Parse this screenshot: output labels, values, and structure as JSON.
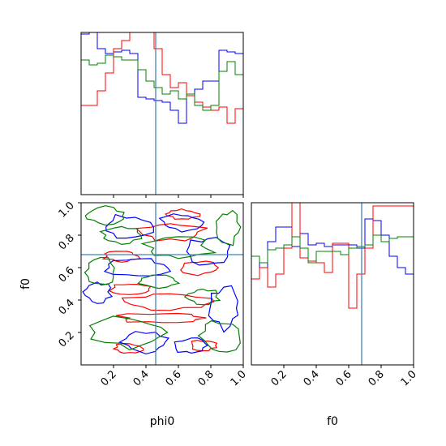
{
  "chart_data": {
    "type": "corner",
    "parameters": [
      "phi0",
      "f0"
    ],
    "xlabel_phi0": "phi0",
    "xlabel_f0": "f0",
    "ylabel_f0": "f0",
    "truths": {
      "phi0": 0.46,
      "f0": 0.68
    },
    "truth_color": "#4682b4",
    "tick_labels": [
      "0.2",
      "0.4",
      "0.6",
      "0.8",
      "1.0"
    ],
    "tick_values": [
      0.2,
      0.4,
      0.6,
      0.8,
      1.0
    ],
    "ylim_f0": [
      0,
      1
    ],
    "xlim": [
      0,
      1
    ],
    "series_colors": [
      "#0000ff",
      "#ff0000",
      "#008000"
    ],
    "series": [
      {
        "color": "#0000ff",
        "hist_phi0": [
          0.99,
          1.0,
          0.9,
          0.87,
          0.88,
          0.89,
          0.87,
          0.6,
          0.59,
          0.58,
          0.57,
          0.52,
          0.44,
          0.62,
          0.65,
          0.7,
          0.7,
          0.89,
          0.88,
          0.87
        ],
        "hist_f0": [
          0.67,
          0.6,
          0.76,
          0.85,
          0.85,
          0.73,
          0.81,
          0.74,
          0.75,
          0.73,
          0.74,
          0.74,
          0.74,
          0.72,
          0.9,
          0.89,
          0.8,
          0.67,
          0.6,
          0.56
        ]
      },
      {
        "color": "#ff0000",
        "hist_phi0": [
          0.55,
          0.55,
          0.64,
          0.75,
          0.9,
          0.95,
          1.0,
          1.0,
          1.0,
          0.9,
          0.74,
          0.66,
          0.69,
          0.61,
          0.57,
          0.54,
          0.52,
          0.54,
          0.44,
          0.53
        ],
        "hist_f0": [
          0.53,
          0.6,
          0.48,
          0.56,
          0.72,
          1.0,
          0.66,
          0.64,
          0.63,
          0.57,
          0.75,
          0.75,
          0.35,
          0.56,
          0.72,
          0.98,
          0.98,
          0.98,
          0.98,
          0.98
        ]
      },
      {
        "color": "#008000",
        "hist_phi0": [
          0.83,
          0.8,
          0.81,
          0.86,
          0.85,
          0.83,
          0.83,
          0.77,
          0.7,
          0.66,
          0.62,
          0.64,
          0.59,
          0.62,
          0.55,
          0.52,
          0.55,
          0.76,
          0.82,
          0.74
        ],
        "hist_f0": [
          0.67,
          0.63,
          0.71,
          0.72,
          0.74,
          0.79,
          0.72,
          0.63,
          0.7,
          0.7,
          0.7,
          0.68,
          0.72,
          0.73,
          0.74,
          0.8,
          0.76,
          0.78,
          0.79,
          0.79
        ]
      }
    ],
    "contours": [
      {
        "color": "#ff0000",
        "rings": [
          {
            "cx": 0.55,
            "cy": 0.39,
            "rx": 0.27,
            "ry": 0.05
          },
          {
            "cx": 0.5,
            "cy": 0.29,
            "rx": 0.25,
            "ry": 0.03
          },
          {
            "cx": 0.55,
            "cy": 0.82,
            "rx": 0.2,
            "ry": 0.05
          },
          {
            "cx": 0.72,
            "cy": 0.6,
            "rx": 0.12,
            "ry": 0.04
          },
          {
            "cx": 0.3,
            "cy": 0.47,
            "rx": 0.12,
            "ry": 0.03
          },
          {
            "cx": 0.25,
            "cy": 0.67,
            "rx": 0.1,
            "ry": 0.035
          },
          {
            "cx": 0.75,
            "cy": 0.12,
            "rx": 0.08,
            "ry": 0.03
          },
          {
            "cx": 0.3,
            "cy": 0.1,
            "rx": 0.1,
            "ry": 0.03
          },
          {
            "cx": 0.62,
            "cy": 0.93,
            "rx": 0.1,
            "ry": 0.03
          }
        ]
      },
      {
        "color": "#0000ff",
        "rings": [
          {
            "cx": 0.28,
            "cy": 0.85,
            "rx": 0.15,
            "ry": 0.07
          },
          {
            "cx": 0.35,
            "cy": 0.6,
            "rx": 0.18,
            "ry": 0.05
          },
          {
            "cx": 0.78,
            "cy": 0.7,
            "rx": 0.12,
            "ry": 0.08
          },
          {
            "cx": 0.88,
            "cy": 0.35,
            "rx": 0.1,
            "ry": 0.12
          },
          {
            "cx": 0.4,
            "cy": 0.14,
            "rx": 0.14,
            "ry": 0.06
          },
          {
            "cx": 0.68,
            "cy": 0.12,
            "rx": 0.1,
            "ry": 0.05
          },
          {
            "cx": 0.1,
            "cy": 0.45,
            "rx": 0.08,
            "ry": 0.06
          },
          {
            "cx": 0.62,
            "cy": 0.88,
            "rx": 0.12,
            "ry": 0.05
          }
        ]
      },
      {
        "color": "#008000",
        "rings": [
          {
            "cx": 0.15,
            "cy": 0.92,
            "rx": 0.12,
            "ry": 0.05
          },
          {
            "cx": 0.3,
            "cy": 0.2,
            "rx": 0.22,
            "ry": 0.09
          },
          {
            "cx": 0.12,
            "cy": 0.57,
            "rx": 0.1,
            "ry": 0.08
          },
          {
            "cx": 0.85,
            "cy": 0.18,
            "rx": 0.12,
            "ry": 0.1
          },
          {
            "cx": 0.6,
            "cy": 0.72,
            "rx": 0.2,
            "ry": 0.06
          },
          {
            "cx": 0.9,
            "cy": 0.85,
            "rx": 0.08,
            "ry": 0.1
          },
          {
            "cx": 0.48,
            "cy": 0.52,
            "rx": 0.12,
            "ry": 0.04
          },
          {
            "cx": 0.25,
            "cy": 0.8,
            "rx": 0.12,
            "ry": 0.05
          },
          {
            "cx": 0.75,
            "cy": 0.42,
            "rx": 0.1,
            "ry": 0.05
          }
        ]
      }
    ]
  }
}
